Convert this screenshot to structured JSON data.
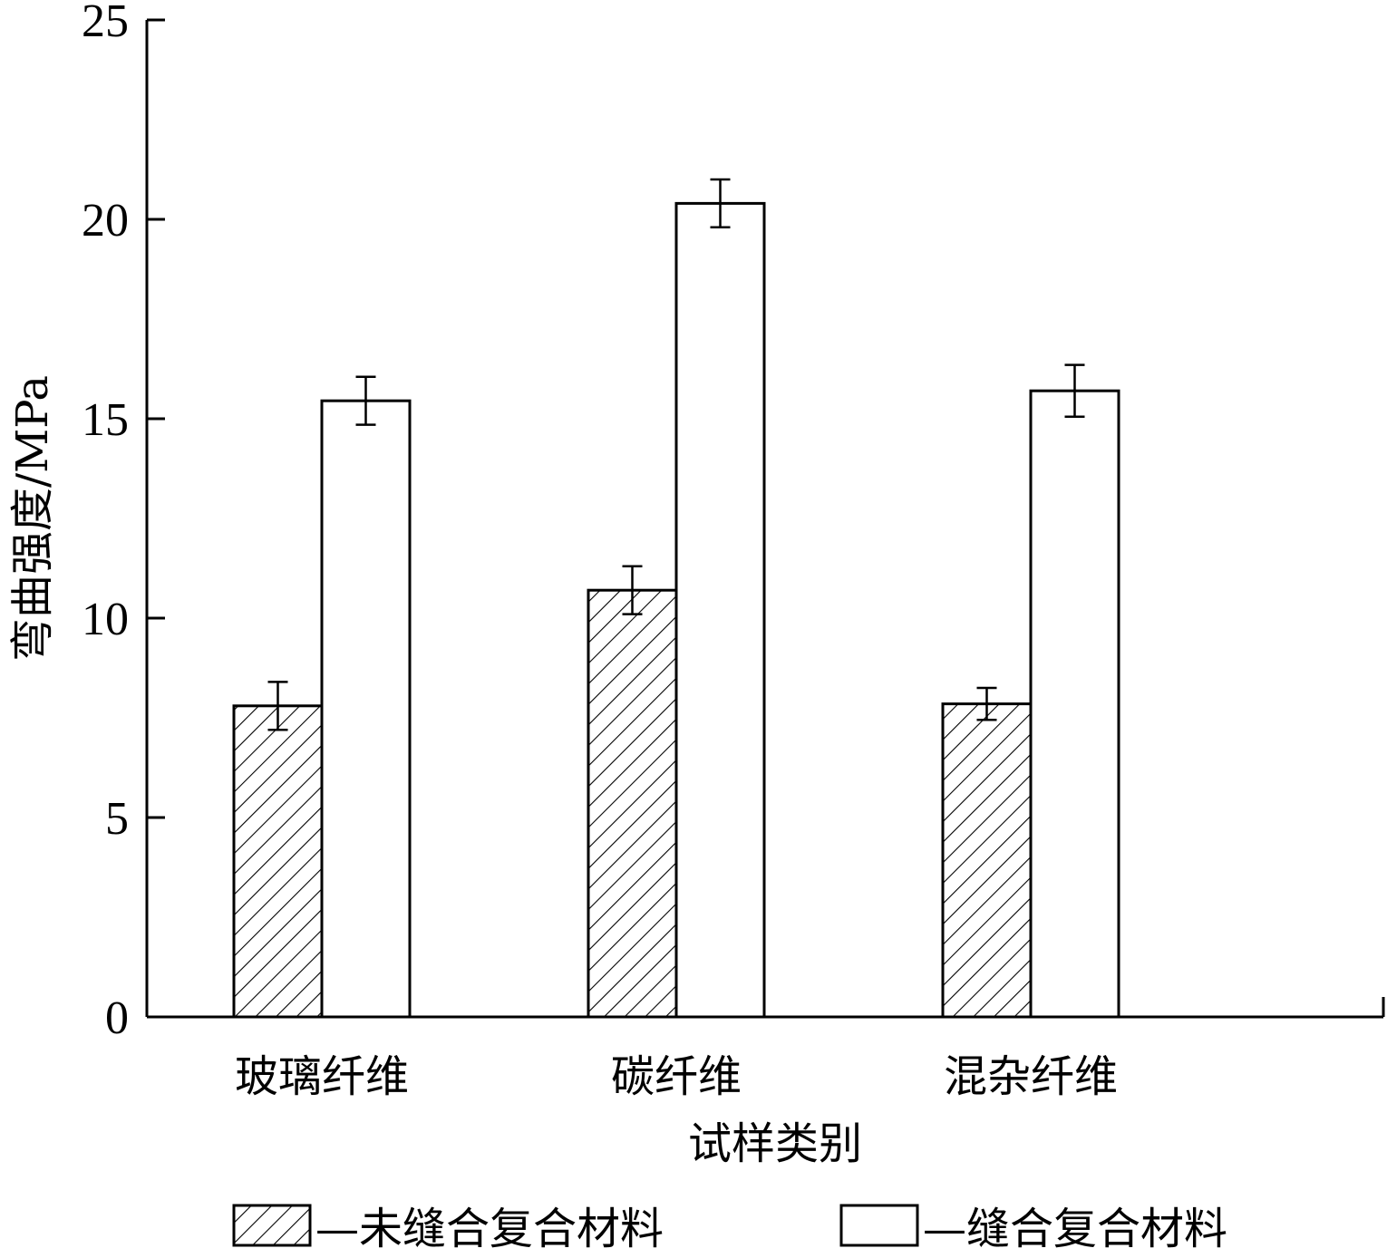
{
  "chart_data": {
    "type": "bar",
    "title": "",
    "xlabel": "试样类别",
    "ylabel": "弯曲强度/MPa",
    "ylim": [
      0,
      25
    ],
    "yticks": [
      0,
      5,
      10,
      15,
      20,
      25
    ],
    "grid": false,
    "legend_position": "bottom",
    "categories": [
      "玻璃纤维",
      "碳纤维",
      "混杂纤维"
    ],
    "series": [
      {
        "name": "—未缝合复合材料",
        "fill": "hatched",
        "values": [
          7.8,
          10.7,
          7.85
        ],
        "errors": [
          0.6,
          0.6,
          0.4
        ]
      },
      {
        "name": "—缝合复合材料",
        "fill": "white",
        "values": [
          15.45,
          20.4,
          15.7
        ],
        "errors": [
          0.6,
          0.6,
          0.65
        ]
      }
    ],
    "colors": {
      "stroke": "#000000",
      "background": "#ffffff"
    }
  }
}
